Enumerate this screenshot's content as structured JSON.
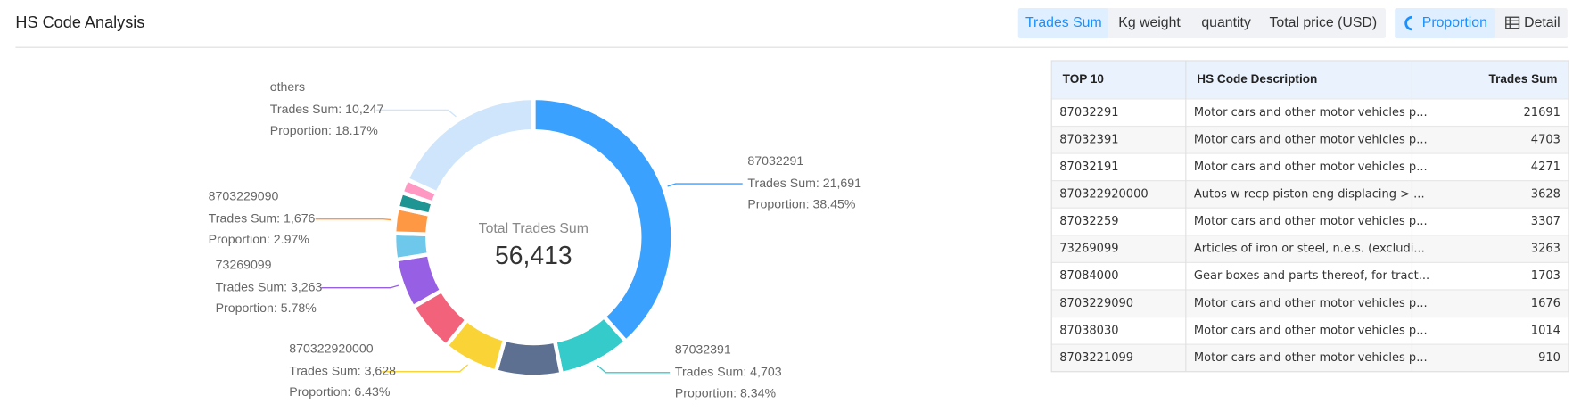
{
  "header": {
    "title": "HS Code Analysis",
    "tabs": [
      "Trades Sum",
      "Kg weight",
      "quantity",
      "Total price (USD)"
    ],
    "views": [
      "Proportion",
      "Detail"
    ]
  },
  "chart_data": {
    "type": "pie",
    "center_label": "Total Trades Sum",
    "total": 56413,
    "total_label": "56,413",
    "categories": [
      "87032291",
      "87032391",
      "87032191",
      "870322920000",
      "87032259",
      "73269099",
      "87084000",
      "8703229090",
      "87038030",
      "8703221099",
      "others"
    ],
    "values": [
      21691,
      4703,
      4271,
      3628,
      3307,
      3263,
      1703,
      1676,
      1014,
      910,
      10247
    ],
    "value_labels": [
      "Trades Sum: 21,691",
      "Trades Sum: 4,703",
      null,
      "Trades Sum: 3,628",
      null,
      "Trades Sum: 3,263",
      null,
      "Trades Sum: 1,676",
      null,
      null,
      "Trades Sum: 10,247"
    ],
    "proportion_labels": [
      "Proportion: 38.45%",
      "Proportion: 8.34%",
      null,
      "Proportion: 6.43%",
      null,
      "Proportion: 5.78%",
      null,
      "Proportion: 2.97%",
      null,
      null,
      "Proportion: 18.17%"
    ],
    "colors": [
      "#3ba1ff",
      "#36cbcb",
      "#5d7092",
      "#fad337",
      "#f2637b",
      "#975fe4",
      "#6dc8ec",
      "#ff9845",
      "#1e9493",
      "#ff99c3",
      "#cfe5fb"
    ]
  },
  "table": {
    "header": [
      "TOP 10",
      "HS Code Description",
      "Trades Sum"
    ],
    "rows": [
      [
        "87032291",
        "Motor cars and other motor vehicles p...",
        21691
      ],
      [
        "87032391",
        "Motor cars and other motor vehicles p...",
        4703
      ],
      [
        "87032191",
        "Motor cars and other motor vehicles p...",
        4271
      ],
      [
        "870322920000",
        "Autos w recp piston eng displacing > ...",
        3628
      ],
      [
        "87032259",
        "Motor cars and other motor vehicles p...",
        3307
      ],
      [
        "73269099",
        "Articles of iron or steel, n.e.s. (excludi...",
        3263
      ],
      [
        "87084000",
        "Gear boxes and parts thereof, for tract...",
        1703
      ],
      [
        "8703229090",
        "Motor cars and other motor vehicles p...",
        1676
      ],
      [
        "87038030",
        "Motor cars and other motor vehicles p...",
        1014
      ],
      [
        "8703221099",
        "Motor cars and other motor vehicles p...",
        910
      ]
    ]
  }
}
